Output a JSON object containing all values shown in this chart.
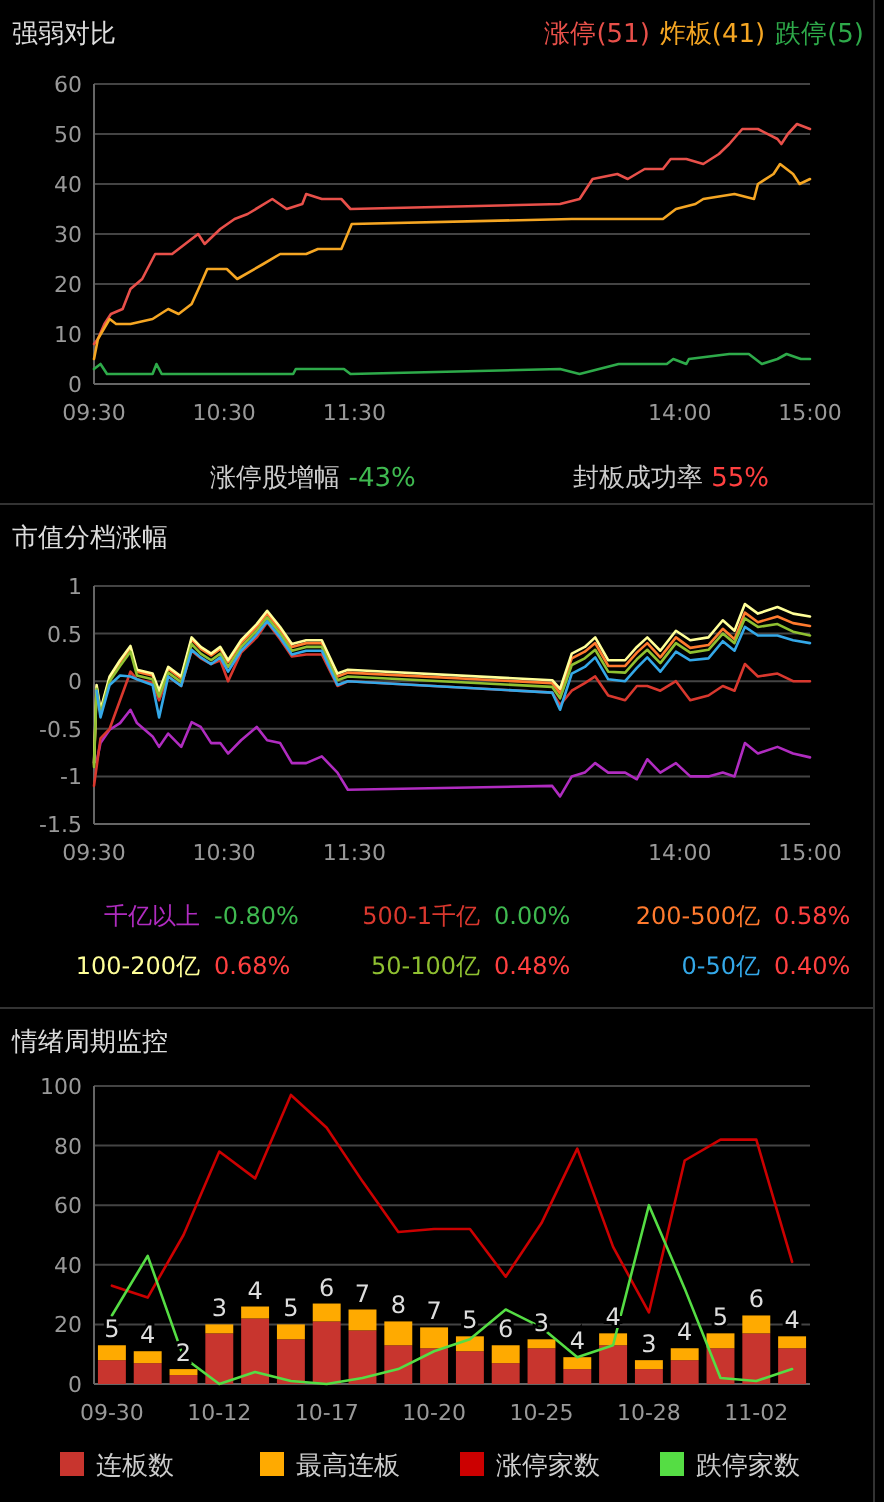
{
  "chart_data": [
    {
      "type": "line",
      "title": "强弱对比",
      "xlim": [
        9.5,
        15
      ],
      "xticks": [
        {
          "value": 9.5,
          "label": "09:30"
        },
        {
          "value": 10.5,
          "label": "10:30"
        },
        {
          "value": 11.5,
          "label": "11:30"
        },
        {
          "value": 14,
          "label": "14:00"
        },
        {
          "value": 15,
          "label": "15:00"
        }
      ],
      "ylim": [
        0,
        60
      ],
      "yticks": [
        0,
        10,
        20,
        30,
        40,
        50,
        60
      ],
      "grid": "y",
      "legend": "top right",
      "series": [
        {
          "name": "涨停(51)",
          "color": "#e8504a",
          "x": [
            9.5,
            9.53,
            9.58,
            9.63,
            9.72,
            9.78,
            9.87,
            9.97,
            10.1,
            10.2,
            10.3,
            10.35,
            10.47,
            10.58,
            10.68,
            10.87,
            10.98,
            11.1,
            11.13,
            11.25,
            11.4,
            11.47,
            13.08,
            13.23,
            13.33,
            13.52,
            13.6,
            13.73,
            13.87,
            13.93,
            14.05,
            14.18,
            14.3,
            14.38,
            14.48,
            14.6,
            14.75,
            14.78,
            14.83,
            14.9,
            15
          ],
          "values": [
            8,
            9,
            12,
            14,
            15,
            19,
            21,
            26,
            26,
            28,
            30,
            28,
            31,
            33,
            34,
            37,
            35,
            36,
            38,
            37,
            37,
            35,
            36,
            37,
            41,
            42,
            41,
            43,
            43,
            45,
            45,
            44,
            46,
            48,
            51,
            51,
            49,
            48,
            50,
            52,
            51
          ]
        },
        {
          "name": "炸板(41)",
          "color": "#f5a623",
          "x": [
            9.5,
            9.53,
            9.62,
            9.67,
            9.78,
            9.95,
            10.07,
            10.15,
            10.25,
            10.32,
            10.37,
            10.52,
            10.6,
            10.8,
            10.93,
            11.13,
            11.22,
            11.4,
            11.48,
            13.17,
            13.33,
            13.52,
            13.67,
            13.87,
            13.97,
            14.12,
            14.18,
            14.42,
            14.57,
            14.6,
            14.72,
            14.77,
            14.87,
            14.92,
            15
          ],
          "values": [
            5,
            9,
            13,
            12,
            12,
            13,
            15,
            14,
            16,
            20,
            23,
            23,
            21,
            24,
            26,
            26,
            27,
            27,
            32,
            33,
            33,
            33,
            33,
            33,
            35,
            36,
            37,
            38,
            37,
            40,
            42,
            44,
            42,
            40,
            41
          ]
        },
        {
          "name": "跌停(5)",
          "color": "#2eaa4a",
          "x": [
            9.5,
            9.55,
            9.6,
            9.95,
            9.98,
            10.02,
            11.03,
            11.05,
            11.42,
            11.47,
            13.08,
            13.23,
            13.38,
            13.53,
            13.9,
            13.95,
            14.05,
            14.07,
            14.38,
            14.53,
            14.63,
            14.75,
            14.82,
            14.93,
            15
          ],
          "values": [
            3,
            4,
            2,
            2,
            4,
            2,
            2,
            3,
            3,
            2,
            3,
            2,
            3,
            4,
            4,
            5,
            4,
            5,
            6,
            6,
            4,
            5,
            6,
            5,
            5
          ]
        }
      ],
      "annotations": [
        "涨停股增幅 -43%",
        "封板成功率 55%"
      ]
    },
    {
      "type": "line",
      "title": "市值分档涨幅",
      "xlim": [
        9.5,
        15
      ],
      "xticks": [
        {
          "value": 9.5,
          "label": "09:30"
        },
        {
          "value": 10.5,
          "label": "10:30"
        },
        {
          "value": 11.5,
          "label": "11:30"
        },
        {
          "value": 14,
          "label": "14:00"
        },
        {
          "value": 15,
          "label": "15:00"
        }
      ],
      "x": [
        9.5,
        9.52,
        9.55,
        9.62,
        9.7,
        9.78,
        9.83,
        9.95,
        10,
        10.07,
        10.17,
        10.25,
        10.32,
        10.4,
        10.47,
        10.53,
        10.63,
        10.75,
        10.83,
        10.93,
        11.02,
        11.13,
        11.25,
        11.37,
        11.45,
        13.02,
        13.08,
        13.17,
        13.27,
        13.35,
        13.45,
        13.58,
        13.67,
        13.75,
        13.85,
        13.97,
        14.08,
        14.22,
        14.33,
        14.42,
        14.5,
        14.6,
        14.75,
        14.87,
        15
      ],
      "ylim": [
        -1.5,
        1
      ],
      "yticks": [
        -1.5,
        -1,
        -0.5,
        0,
        0.5,
        1
      ],
      "grid": "y",
      "legend": "bottom",
      "series": [
        {
          "name": "千亿以上",
          "color": "#b02cc0",
          "x": [
            9.52,
            9.55,
            9.62,
            9.7,
            9.78,
            9.83,
            9.95,
            10,
            10.07,
            10.17,
            10.25,
            10.32,
            10.4,
            10.47,
            10.53,
            10.63,
            10.75,
            10.83,
            10.93,
            11.02,
            11.13,
            11.25,
            11.37,
            11.45,
            13.02,
            13.08,
            13.17,
            13.27,
            13.35,
            13.45,
            13.58,
            13.67,
            13.75,
            13.85,
            13.97,
            14.08,
            14.22,
            14.33,
            14.42,
            14.5,
            14.6,
            14.75,
            14.87,
            15
          ],
          "values": [
            -0.85,
            -0.65,
            -0.51,
            -0.44,
            -0.3,
            -0.44,
            -0.58,
            -0.69,
            -0.55,
            -0.69,
            -0.43,
            -0.48,
            -0.65,
            -0.65,
            -0.76,
            -0.62,
            -0.48,
            -0.62,
            -0.65,
            -0.86,
            -0.86,
            -0.79,
            -0.96,
            -1.14,
            -1.1,
            -1.21,
            -1,
            -0.96,
            -0.86,
            -0.96,
            -0.96,
            -1.03,
            -0.82,
            -0.96,
            -0.86,
            -1,
            -1,
            -0.96,
            -1,
            -0.65,
            -0.76,
            -0.69,
            -0.76,
            -0.8
          ]
        },
        {
          "name": "500-1千亿",
          "color": "#d9382e",
          "x": [
            9.5,
            9.55,
            9.62,
            9.7,
            9.78,
            9.83,
            9.95,
            10,
            10.07,
            10.17,
            10.25,
            10.32,
            10.4,
            10.47,
            10.53,
            10.63,
            10.75,
            10.83,
            10.93,
            11.02,
            11.13,
            11.25,
            11.37,
            11.45,
            13.02,
            13.08,
            13.17,
            13.27,
            13.35,
            13.45,
            13.58,
            13.67,
            13.75,
            13.85,
            13.97,
            14.08,
            14.22,
            14.33,
            14.42,
            14.5,
            14.6,
            14.75,
            14.87,
            15
          ],
          "values": [
            -1.1,
            -0.6,
            -0.5,
            -0.2,
            0.1,
            0.02,
            -0.02,
            -0.2,
            0.05,
            -0.05,
            0.32,
            0.24,
            0.18,
            0.22,
            0,
            0.3,
            0.46,
            0.62,
            0.44,
            0.26,
            0.28,
            0.28,
            -0.05,
            0,
            -0.12,
            -0.25,
            -0.1,
            -0.02,
            0.05,
            -0.15,
            -0.2,
            -0.05,
            -0.05,
            -0.1,
            0,
            -0.2,
            -0.15,
            -0.05,
            -0.1,
            0.18,
            0.05,
            0.08,
            0,
            0
          ]
        },
        {
          "name": "200-500亿",
          "color": "#ff7a2e",
          "values": [
            -0.88,
            -0.06,
            -0.32,
            0.03,
            0.2,
            0.35,
            0.1,
            0.06,
            -0.12,
            0.13,
            0.03,
            0.44,
            0.34,
            0.27,
            0.34,
            0.2,
            0.4,
            0.57,
            0.71,
            0.54,
            0.36,
            0.4,
            0.4,
            0.05,
            0.09,
            -0.02,
            -0.13,
            0.24,
            0.31,
            0.4,
            0.16,
            0.16,
            0.3,
            0.4,
            0.25,
            0.46,
            0.35,
            0.38,
            0.55,
            0.44,
            0.72,
            0.62,
            0.68,
            0.61,
            0.58
          ]
        },
        {
          "name": "100-200亿",
          "color": "#ffff99",
          "values": [
            -0.86,
            -0.04,
            -0.3,
            0.05,
            0.22,
            0.37,
            0.12,
            0.08,
            -0.1,
            0.15,
            0.05,
            0.46,
            0.36,
            0.29,
            0.36,
            0.22,
            0.43,
            0.6,
            0.74,
            0.57,
            0.39,
            0.43,
            0.43,
            0.08,
            0.12,
            0.01,
            -0.08,
            0.29,
            0.36,
            0.46,
            0.22,
            0.22,
            0.36,
            0.46,
            0.32,
            0.53,
            0.43,
            0.46,
            0.64,
            0.53,
            0.81,
            0.71,
            0.78,
            0.71,
            0.68
          ]
        },
        {
          "name": "50-100亿",
          "color": "#8fc031",
          "values": [
            -0.9,
            -0.08,
            -0.34,
            0,
            0.16,
            0.31,
            0.06,
            0.02,
            -0.16,
            0.09,
            -0.01,
            0.39,
            0.29,
            0.22,
            0.29,
            0.15,
            0.36,
            0.53,
            0.67,
            0.5,
            0.32,
            0.36,
            0.36,
            0.01,
            0.05,
            -0.06,
            -0.18,
            0.17,
            0.24,
            0.33,
            0.1,
            0.09,
            0.23,
            0.33,
            0.19,
            0.4,
            0.3,
            0.33,
            0.5,
            0.4,
            0.66,
            0.57,
            0.6,
            0.52,
            0.48
          ]
        },
        {
          "name": "0-50亿",
          "color": "#34a8e8",
          "values": [
            null,
            -0.1,
            -0.38,
            -0.04,
            0.06,
            0.05,
            0.02,
            -0.04,
            -0.38,
            0.05,
            -0.05,
            0.33,
            0.25,
            0.18,
            0.25,
            0.1,
            0.32,
            0.49,
            0.63,
            0.46,
            0.28,
            0.32,
            0.32,
            -0.04,
            0,
            -0.12,
            -0.3,
            0.08,
            0.15,
            0.25,
            0.02,
            0,
            0.14,
            0.25,
            0.1,
            0.31,
            0.22,
            0.24,
            0.42,
            0.32,
            0.57,
            0.48,
            0.48,
            0.43,
            0.4
          ]
        }
      ],
      "annotations": [
        "-0.80%",
        "0.00%",
        "0.58%",
        "0.68%",
        "0.48%",
        "0.40%"
      ]
    },
    {
      "type": "bar",
      "title": "情绪周期监控",
      "stacked": true,
      "categories": [
        "09-30",
        null,
        null,
        "10-12",
        null,
        null,
        "10-17",
        null,
        null,
        "10-20",
        null,
        null,
        "10-25",
        null,
        null,
        "10-28",
        null,
        null,
        "11-02",
        null
      ],
      "ylim": [
        0,
        100
      ],
      "yticks": [
        0,
        20,
        40,
        60,
        80,
        100
      ],
      "grid": "y",
      "legend": "bottom",
      "series": [
        {
          "name": "连板数",
          "color": "#c8352e",
          "values": [
            8,
            7,
            3,
            17,
            22,
            15,
            21,
            18,
            13,
            12,
            11,
            7,
            12,
            5,
            13,
            5,
            8,
            12,
            17,
            12
          ]
        },
        {
          "name": "最高连板",
          "color": "#ffaa00",
          "values": [
            5,
            4,
            2,
            3,
            4,
            5,
            6,
            7,
            8,
            7,
            5,
            6,
            3,
            4,
            4,
            3,
            4,
            5,
            6,
            4
          ],
          "value_labels": [
            "5",
            "4",
            "2",
            "3",
            "4",
            "5",
            "6",
            "7",
            "8",
            "7",
            "5",
            "6",
            "3",
            "4",
            "4",
            "3",
            "4",
            "5",
            "6",
            "4"
          ]
        },
        {
          "name": "涨停家数",
          "type": "line",
          "color": "#cc0000",
          "values": [
            33,
            29,
            50,
            78,
            69,
            97,
            86,
            68,
            51,
            52,
            52,
            36,
            54,
            79,
            46,
            24,
            75,
            82,
            82,
            41
          ]
        },
        {
          "name": "跌停家数",
          "type": "line",
          "color": "#55dd44",
          "values": [
            23,
            43,
            9,
            0,
            4,
            1,
            0,
            2,
            5,
            11,
            15,
            25,
            19,
            9,
            13,
            60,
            32,
            2,
            1,
            5
          ]
        }
      ]
    }
  ]
}
